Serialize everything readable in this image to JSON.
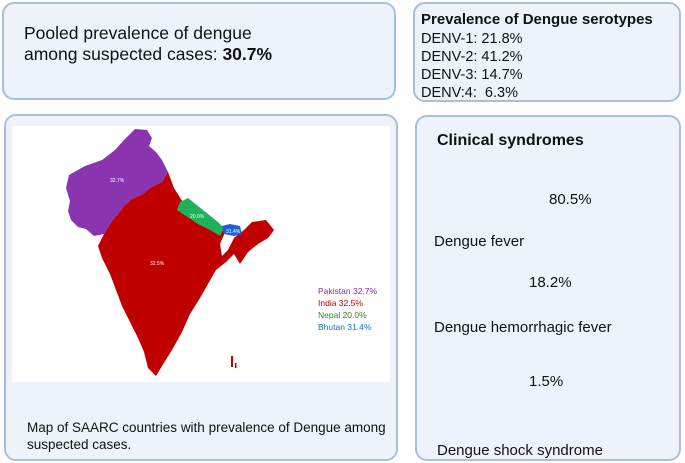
{
  "pooled": {
    "line1": "Pooled prevalence of dengue",
    "line2_prefix": "among suspected cases: ",
    "value": "30.7%"
  },
  "serotypes": {
    "title": "Prevalence of Dengue serotypes",
    "lines": [
      "DENV-1: 21.8%",
      "DENV-2: 41.2%",
      "DENV-3: 14.7%",
      "DENV:4:  6.3%"
    ]
  },
  "map": {
    "country_labels": {
      "pakistan": "32.7%",
      "india": "32.5%",
      "nepal": "20.0%",
      "bhutan": "31.4%"
    },
    "legend": [
      {
        "text": "Pakistan 32.7%",
        "color": "#7b2fa6"
      },
      {
        "text": "India 32.5%",
        "color": "#c00000"
      },
      {
        "text": "Nepal 20.0%",
        "color": "#3a7d2a"
      },
      {
        "text": "Bhutan 31.4%",
        "color": "#1f6fc0"
      }
    ],
    "colors": {
      "pakistan": "#8a34b0",
      "india": "#c00000",
      "nepal": "#1fb05a",
      "bhutan": "#1e63d6"
    },
    "caption": "Map of SAARC countries with prevalence of Dengue among suspected cases."
  },
  "clinical": {
    "title": "Clinical syndromes",
    "items": [
      {
        "value": "80.5%",
        "label": "Dengue fever"
      },
      {
        "value": "18.2%",
        "label": "Dengue hemorrhagic fever"
      },
      {
        "value": "1.5%",
        "label": "Dengue shock syndrome"
      }
    ]
  }
}
